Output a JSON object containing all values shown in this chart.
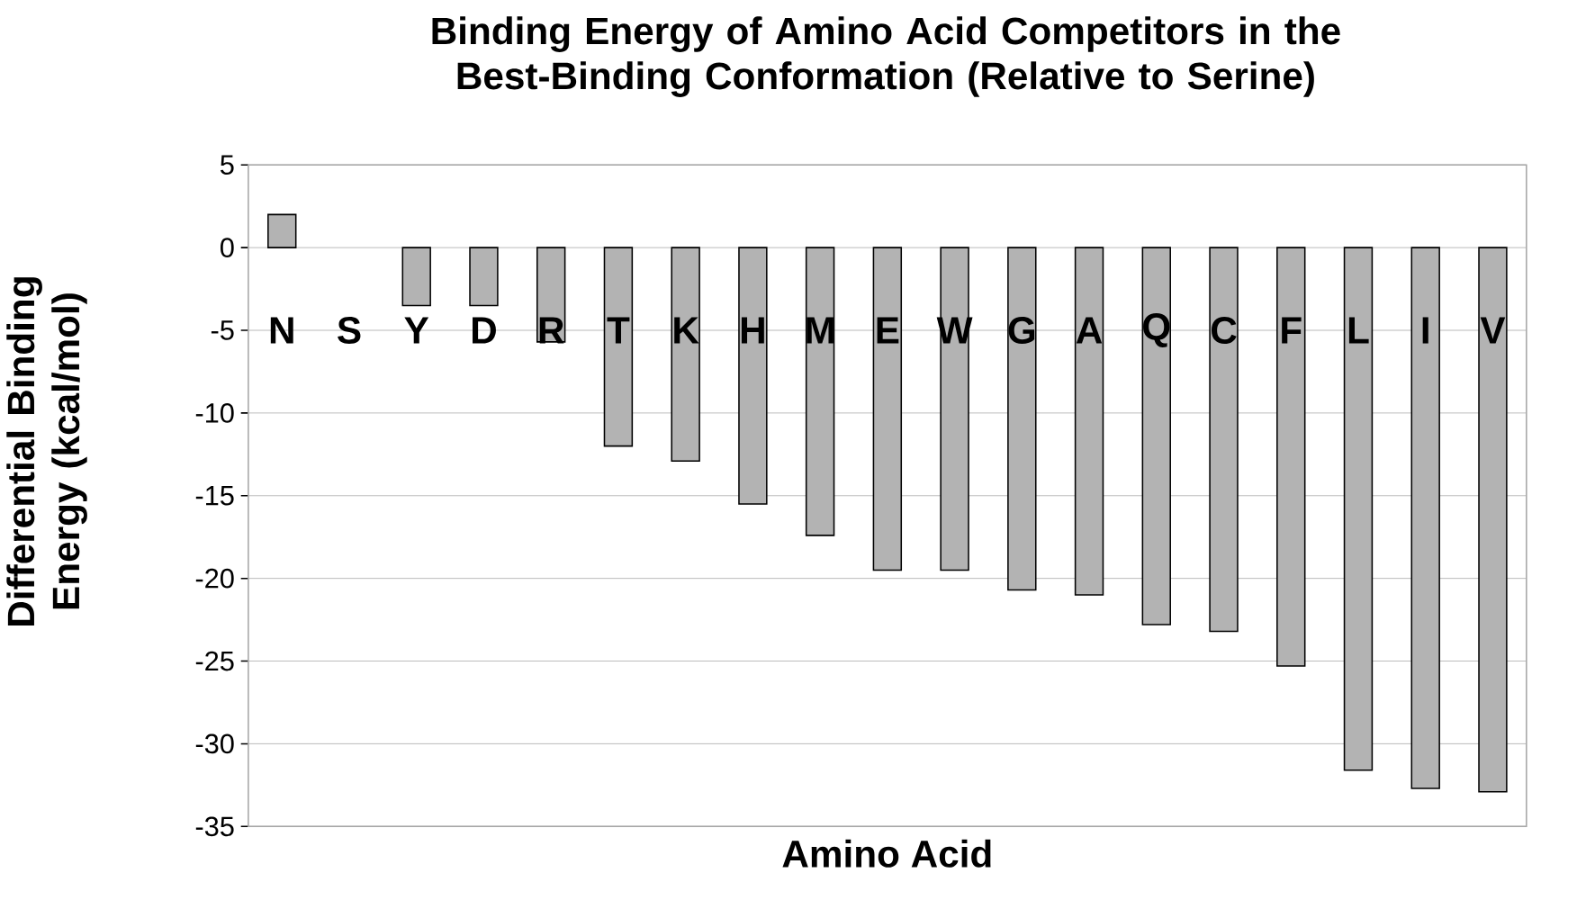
{
  "chart_data": {
    "type": "bar",
    "title": "Binding Energy of Amino Acid Competitors in the Best-Binding Conformation (Relative to Serine)",
    "xlabel": "Amino Acid",
    "ylabel": "Differential Binding Energy (kcal/mol)",
    "categories": [
      "N",
      "S",
      "Y",
      "D",
      "R",
      "T",
      "K",
      "H",
      "M",
      "E",
      "W",
      "G",
      "A",
      "Q",
      "C",
      "F",
      "L",
      "I",
      "V"
    ],
    "values": [
      2.0,
      0,
      -3.5,
      -3.5,
      -5.7,
      -12.0,
      -12.9,
      -15.5,
      -17.4,
      -19.5,
      -19.5,
      -20.7,
      -21.0,
      -22.8,
      -23.2,
      -25.3,
      -31.6,
      -32.7,
      -32.9
    ],
    "color": "#b3b3b3",
    "ylim": [
      -35,
      5
    ],
    "yticks": [
      -35,
      -30,
      -25,
      -20,
      -15,
      -10,
      -5,
      0,
      5
    ],
    "grid": "y"
  }
}
